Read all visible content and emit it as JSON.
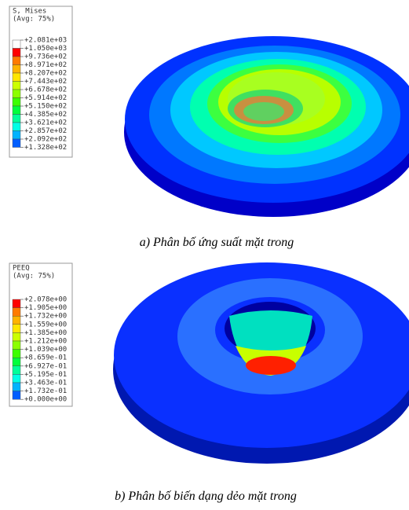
{
  "panels": [
    {
      "legend": {
        "title": "S, Mises",
        "subtitle": "(Avg: 75%)",
        "labels": [
          "+2.081e+03",
          "+1.050e+03",
          "+9.736e+02",
          "+8.971e+02",
          "+8.207e+02",
          "+7.443e+02",
          "+6.678e+02",
          "+5.914e+02",
          "+5.150e+02",
          "+4.385e+02",
          "+3.621e+02",
          "+2.857e+02",
          "+2.092e+02",
          "+1.328e+02"
        ],
        "colors": [
          "#ffffff",
          "#ff0000",
          "#ff7a00",
          "#ffb300",
          "#ffe600",
          "#ccff00",
          "#8cff00",
          "#3cff00",
          "#00ff3c",
          "#00ff9a",
          "#00ffe6",
          "#00b3ff",
          "#005eff",
          "#0000ff"
        ]
      },
      "caption": "a) Phân bố ứng suất mặt trong"
    },
    {
      "legend": {
        "title": "PEEQ",
        "subtitle": "(Avg: 75%)",
        "labels": [
          "+2.078e+00",
          "+1.905e+00",
          "+1.732e+00",
          "+1.559e+00",
          "+1.385e+00",
          "+1.212e+00",
          "+1.039e+00",
          "+8.659e-01",
          "+6.927e-01",
          "+5.195e-01",
          "+3.463e-01",
          "+1.732e-01",
          "+0.000e+00"
        ],
        "colors": [
          "#ff0000",
          "#ff7a00",
          "#ffb300",
          "#ffe600",
          "#ccff00",
          "#8cff00",
          "#3cff00",
          "#00ff3c",
          "#00ff9a",
          "#00ffe6",
          "#00b3ff",
          "#005eff",
          "#0000ff"
        ]
      },
      "caption": "b) Phân bố biến dạng dẻo mặt trong"
    }
  ]
}
